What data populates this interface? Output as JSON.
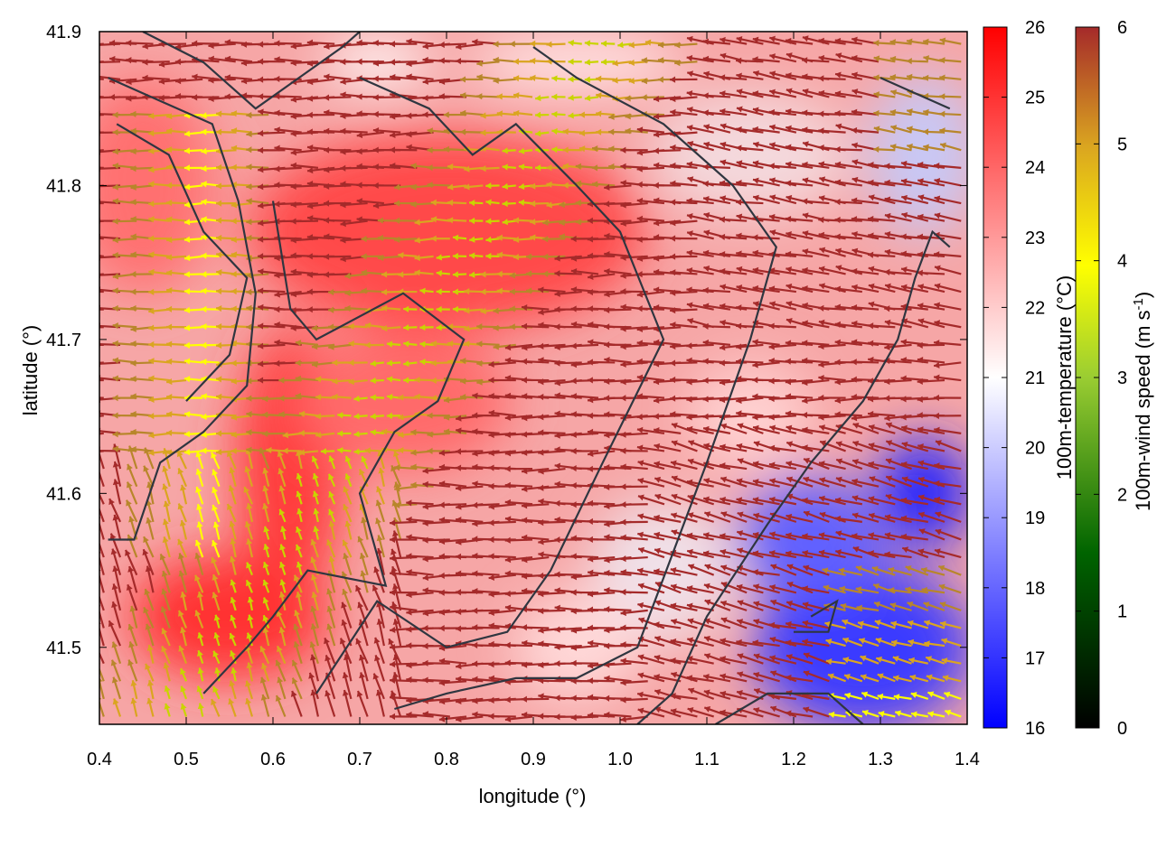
{
  "chart_data": {
    "type": "heatmap",
    "xlabel": "longitude (°)",
    "ylabel": "latitude (°)",
    "xlim": [
      0.4,
      1.4
    ],
    "ylim": [
      41.45,
      41.9
    ],
    "x_ticks": [
      "0.4",
      "0.5",
      "0.6",
      "0.7",
      "0.8",
      "0.9",
      "1.0",
      "1.1",
      "1.2",
      "1.3",
      "1.4"
    ],
    "y_ticks": [
      "41.5",
      "41.6",
      "41.7",
      "41.8",
      "41.9"
    ],
    "temperature_colorbar": {
      "label": "100m-temperature (°C)",
      "range": [
        16,
        26
      ],
      "ticks": [
        "16",
        "17",
        "18",
        "19",
        "20",
        "21",
        "22",
        "23",
        "24",
        "25",
        "26"
      ],
      "colors": [
        "#0000ff",
        "#ffffff",
        "#ff0000"
      ]
    },
    "wind_colorbar": {
      "label_main": "100m-wind speed (m s",
      "label_sup": "-1",
      "label_close": ")",
      "range": [
        0,
        6
      ],
      "ticks": [
        "0",
        "1",
        "2",
        "3",
        "4",
        "5",
        "6"
      ],
      "colors": [
        "#000000",
        "#006400",
        "#9acd32",
        "#ffff00",
        "#daa520",
        "#a52a2a"
      ]
    },
    "contour_color": "#2f3640",
    "vector_field": "east-northeast wind field over a temperature map; vectors shaded by 100m wind speed"
  }
}
